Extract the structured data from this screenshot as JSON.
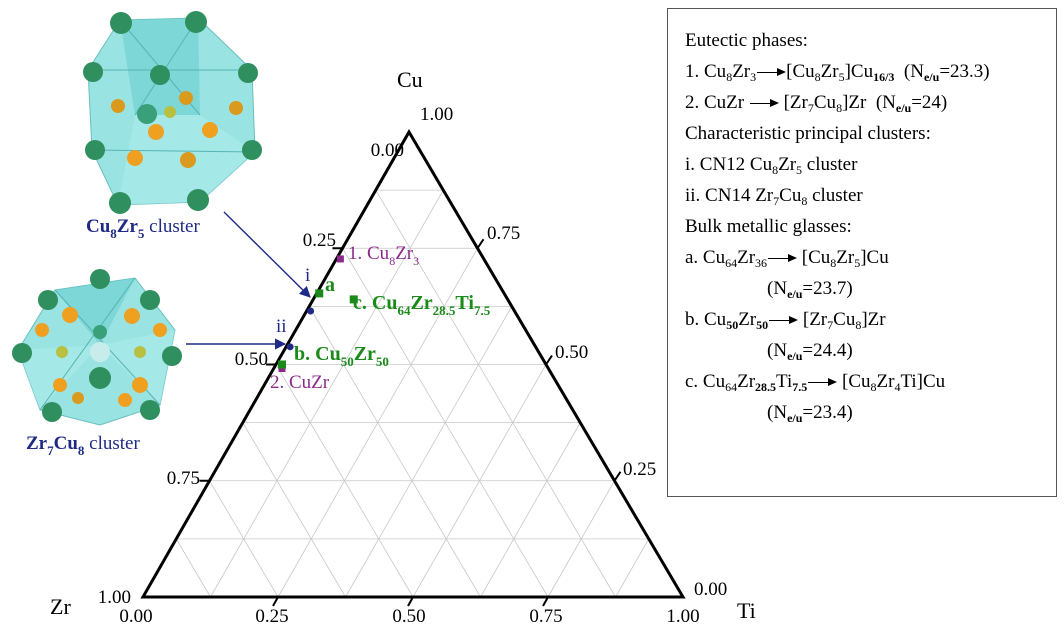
{
  "vertices": {
    "top": "Cu",
    "left": "Zr",
    "right": "Ti"
  },
  "ticks": {
    "bottom": [
      "0.00",
      "0.25",
      "0.50",
      "0.75",
      "1.00"
    ],
    "left": [
      "1.00",
      "0.75",
      "0.50",
      "0.25",
      "0.00"
    ],
    "right": [
      "0.00",
      "0.25",
      "0.50",
      "0.75",
      "1.00"
    ]
  },
  "points": [
    {
      "id": "p1",
      "label_parts": [
        "1. Cu",
        "8",
        "Zr",
        "3"
      ],
      "cu": 0.727,
      "ti": 0.0,
      "color": "#8b2a8b"
    },
    {
      "id": "p2",
      "label_parts": [
        "2. CuZr"
      ],
      "cu": 0.5,
      "ti": 0.0,
      "color": "#8b2a8b"
    },
    {
      "id": "pa",
      "label_parts": [
        "a"
      ],
      "cu": 0.64,
      "ti": 0.0,
      "color": "#1a8a1a"
    },
    {
      "id": "pb",
      "label_parts": [
        "b. Cu",
        "50",
        "Zr",
        "50"
      ],
      "cu": 0.5,
      "ti": 0.0,
      "color": "#1a8a1a"
    },
    {
      "id": "pc",
      "label_parts": [
        "c. Cu",
        "64",
        "Zr",
        "28.5",
        "Ti",
        "7.5"
      ],
      "cu": 0.64,
      "ti": 0.075,
      "color": "#1a8a1a"
    }
  ],
  "clusters": [
    {
      "id": "i",
      "label": "i",
      "cu": 0.615,
      "ti": 0.0
    },
    {
      "id": "ii",
      "label": "ii",
      "cu": 0.538,
      "ti": 0.0
    }
  ],
  "cluster_images": {
    "top": {
      "label_parts": [
        "Cu",
        "8",
        "Zr",
        "5",
        " cluster"
      ]
    },
    "bottom": {
      "label_parts": [
        "Zr",
        "7",
        "Cu",
        "8",
        " cluster"
      ]
    }
  },
  "legend": {
    "eutectic_title": "Eutectic phases:",
    "clusters_title": "Characteristic principal clusters:",
    "bmg_title": "Bulk metallic glasses:"
  },
  "colors": {
    "green": "#1a8a1a",
    "purple": "#8b2a8b",
    "navy": "#1e2a86",
    "cyan": "#7fdcdc"
  }
}
